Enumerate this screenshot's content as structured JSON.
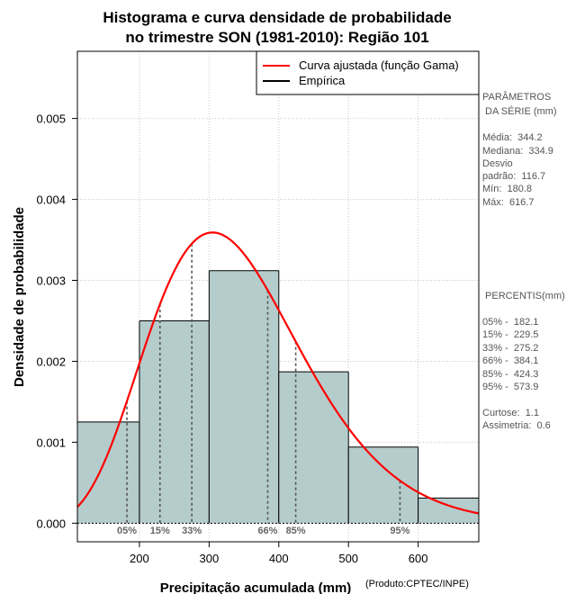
{
  "chart_data": {
    "type": "histogram",
    "title_line1": "Histograma e curva densidade de probabilidade",
    "title_line2": "no trimestre SON (1981-2010): Região 101",
    "xlabel": "Precipitação acumulada (mm)",
    "ylabel": "Densidade de probabilidade",
    "credit": "(Produto:CPTEC/INPE)",
    "xlim": [
      111,
      687
    ],
    "ylim": [
      -0.00023,
      0.00583
    ],
    "x_ticks": [
      200,
      300,
      400,
      500,
      600
    ],
    "y_ticks": [
      0.0,
      0.001,
      0.002,
      0.003,
      0.004,
      0.005
    ],
    "y_tick_labels": [
      "0.000",
      "0.001",
      "0.002",
      "0.003",
      "0.004",
      "0.005"
    ],
    "grid": true,
    "bars": [
      {
        "x0": 100,
        "x1": 200,
        "density": 0.00125
      },
      {
        "x0": 200,
        "x1": 300,
        "density": 0.0025
      },
      {
        "x0": 300,
        "x1": 400,
        "density": 0.00312
      },
      {
        "x0": 400,
        "x1": 500,
        "density": 0.00187
      },
      {
        "x0": 500,
        "x1": 600,
        "density": 0.00094
      },
      {
        "x0": 600,
        "x1": 700,
        "density": 0.00031
      }
    ],
    "bar_color": "#b5cccc",
    "gamma_fit": {
      "shape": 8.7,
      "scale": 39.6
    },
    "curve_color": "#ff0000",
    "percentile_lines": [
      {
        "label": "05%",
        "value": 182.1
      },
      {
        "label": "15%",
        "value": 229.5
      },
      {
        "label": "33%",
        "value": 275.2
      },
      {
        "label": "66%",
        "value": 384.1
      },
      {
        "label": "85%",
        "value": 424.3
      },
      {
        "label": "95%",
        "value": 573.9
      }
    ],
    "legend": {
      "position": "top-right",
      "items": [
        {
          "label": "Curva ajustada (função Gama)",
          "color": "#ff0000"
        },
        {
          "label": "Empírica",
          "color": "#000000"
        }
      ]
    }
  },
  "side_panel": {
    "params_title_1": "PARÂMETROS",
    "params_title_2": " DA SÉRIE (mm)",
    "media": "Média:  344.2",
    "mediana": "Mediana:  334.9",
    "desvio_1": "Desvio",
    "desvio_2": "padrão:  116.7",
    "min": "Mín:  180.8",
    "max": "Máx:  616.7",
    "percentis_title": " PERCENTIS(mm)",
    "p05": "05% -  182.1",
    "p15": "15% -  229.5",
    "p33": "33% -  275.2",
    "p66": "66% -  384.1",
    "p85": "85% -  424.3",
    "p95": "95% -  573.9",
    "curtose": "Curtose:  1.1",
    "assimetria": "Assimetria:  0.6"
  }
}
